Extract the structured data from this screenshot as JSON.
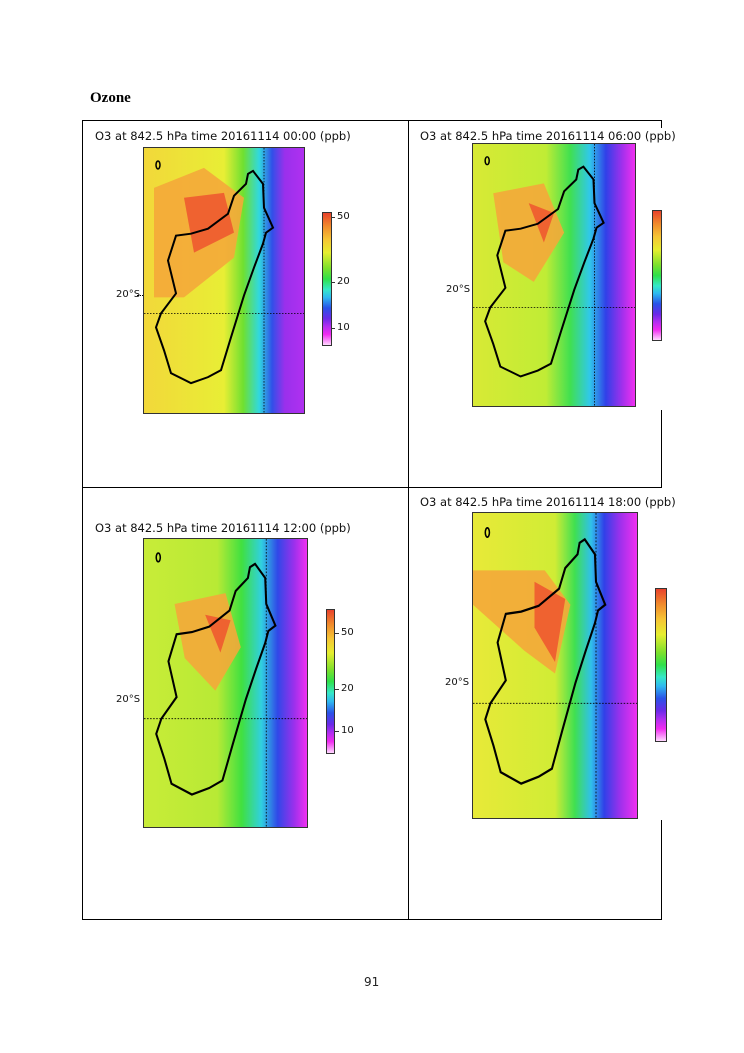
{
  "heading": "Ozone",
  "panels": [
    {
      "title": "O3 at 842.5 hPa time 20161114 00:00 (ppb)",
      "lat_label": "20°S",
      "ticks": [
        "50",
        "20",
        "10"
      ]
    },
    {
      "title": "O3 at 842.5 hPa time 20161114 06:00 (ppb)",
      "lat_label": "20°S",
      "ticks": []
    },
    {
      "title": "O3 at 842.5 hPa time 20161114 12:00 (ppb)",
      "lat_label": "20°S",
      "ticks": [
        "50",
        "20",
        "10"
      ]
    },
    {
      "title": "O3 at 842.5 hPa time 20161114 18:00 (ppb)",
      "lat_label": "20°S",
      "ticks": []
    }
  ],
  "page_number": "91"
}
